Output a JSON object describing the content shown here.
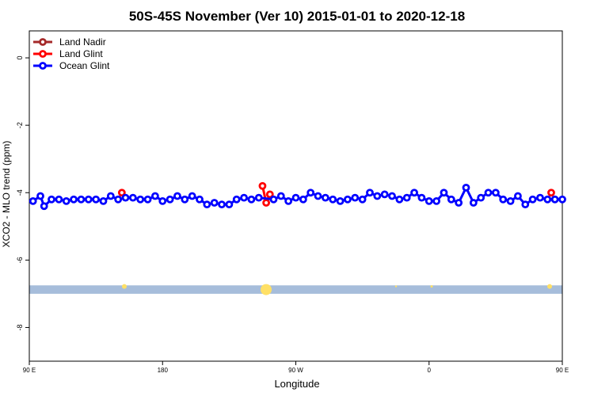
{
  "chart_data": {
    "type": "line",
    "title": "50S-45S November (Ver 10)   2015-01-01 to 2020-12-18",
    "xlabel": "Longitude",
    "ylabel": "XCO2 - MLO trend (ppm)",
    "xlim": [
      0,
      360
    ],
    "ylim": [
      -9,
      0.8
    ],
    "x_ticks": [
      {
        "value": 0,
        "label": "90 E"
      },
      {
        "value": 90,
        "label": "180"
      },
      {
        "value": 180,
        "label": "90 W"
      },
      {
        "value": 270,
        "label": "0"
      },
      {
        "value": 360,
        "label": "90 E"
      },
      {
        "value": 450,
        "label": "180"
      }
    ],
    "y_ticks": [
      {
        "value": 0,
        "label": "0"
      },
      {
        "value": -2,
        "label": "-2"
      },
      {
        "value": -4,
        "label": "-4"
      },
      {
        "value": -6,
        "label": "-6"
      },
      {
        "value": -8,
        "label": "-8"
      }
    ],
    "legend_position": "top-left",
    "band": {
      "y_min": -7.0,
      "y_max": -6.75,
      "color": "#a6bddb"
    },
    "land_spots_color": "#ffe066",
    "series": [
      {
        "name": "Land Nadir",
        "color": "#a52a2a",
        "x": [],
        "y": []
      },
      {
        "name": "Land Glint",
        "color": "#ff0000",
        "x": [
          62.5,
          157.5,
          160,
          162.5,
          352.5
        ],
        "y": [
          -4.0,
          -3.8,
          -4.3,
          -4.05,
          -4.0
        ]
      },
      {
        "name": "Ocean Glint",
        "color": "#0000ff",
        "x": [
          2.5,
          7.5,
          10,
          15,
          20,
          25,
          30,
          35,
          40,
          45,
          50,
          55,
          60,
          65,
          70,
          75,
          80,
          85,
          90,
          95,
          100,
          105,
          110,
          115,
          120,
          125,
          130,
          135,
          140,
          145,
          150,
          155,
          165,
          170,
          175,
          180,
          185,
          190,
          195,
          200,
          205,
          210,
          215,
          220,
          225,
          230,
          235,
          240,
          245,
          250,
          255,
          260,
          265,
          270,
          275,
          280,
          285,
          290,
          295,
          300,
          305,
          310,
          315,
          320,
          325,
          330,
          335,
          340,
          345,
          350,
          355,
          360
        ],
        "y": [
          -4.25,
          -4.1,
          -4.4,
          -4.2,
          -4.2,
          -4.25,
          -4.2,
          -4.2,
          -4.2,
          -4.2,
          -4.25,
          -4.1,
          -4.2,
          -4.15,
          -4.15,
          -4.2,
          -4.2,
          -4.1,
          -4.25,
          -4.2,
          -4.1,
          -4.2,
          -4.1,
          -4.2,
          -4.35,
          -4.3,
          -4.35,
          -4.35,
          -4.2,
          -4.15,
          -4.2,
          -4.15,
          -4.2,
          -4.1,
          -4.25,
          -4.15,
          -4.2,
          -4.0,
          -4.1,
          -4.15,
          -4.2,
          -4.25,
          -4.2,
          -4.15,
          -4.2,
          -4.0,
          -4.1,
          -4.05,
          -4.1,
          -4.2,
          -4.15,
          -4.0,
          -4.15,
          -4.25,
          -4.25,
          -4.0,
          -4.2,
          -4.3,
          -3.85,
          -4.3,
          -4.15,
          -4.0,
          -4.0,
          -4.2,
          -4.25,
          -4.1,
          -4.35,
          -4.2,
          -4.15,
          -4.2,
          -4.2,
          -4.2
        ]
      }
    ]
  }
}
